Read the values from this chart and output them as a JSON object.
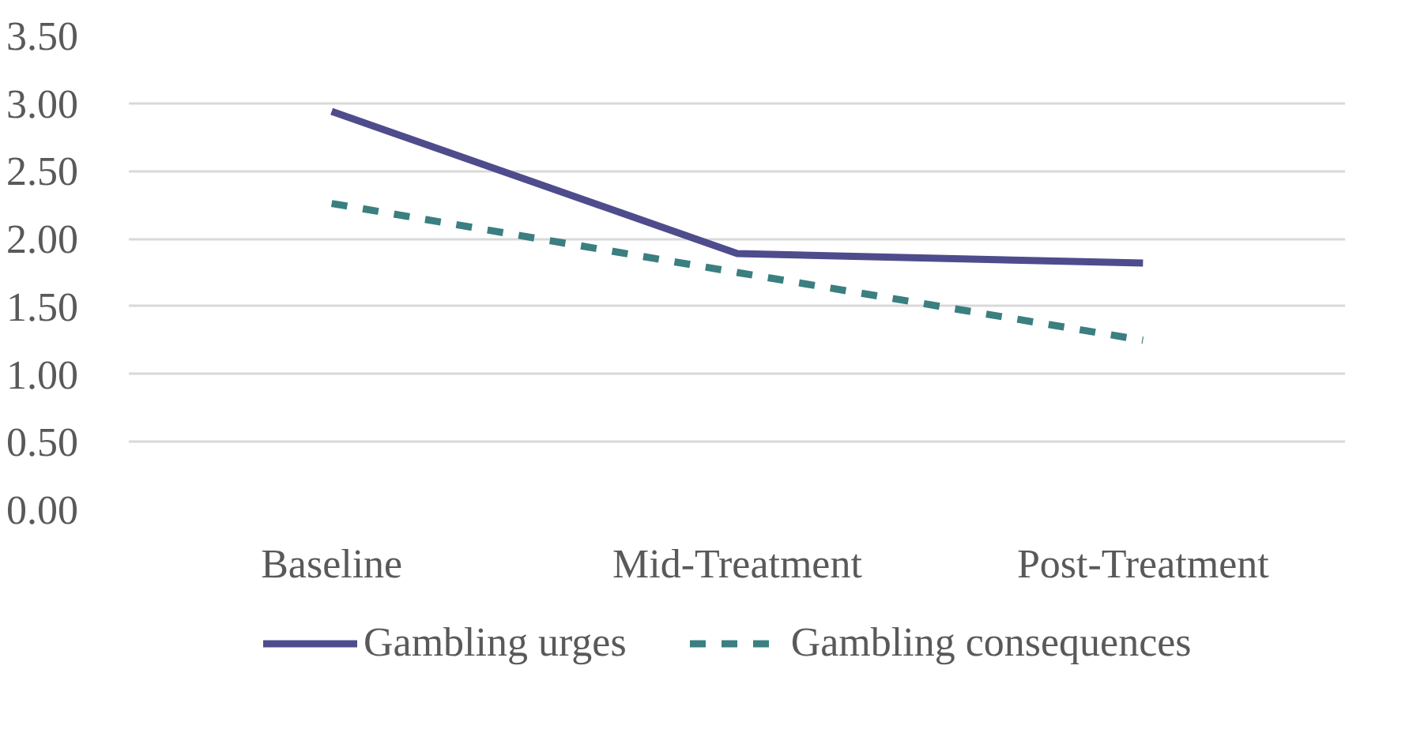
{
  "chart_data": {
    "type": "line",
    "categories": [
      "Baseline",
      "Mid-Treatment",
      "Post-Treatment"
    ],
    "series": [
      {
        "name": "Gambling urges",
        "color": "#4e4c8c",
        "line_style": "solid",
        "values": [
          2.94,
          1.89,
          1.82
        ]
      },
      {
        "name": "Gambling consequences",
        "color": "#3b7f80",
        "line_style": "dashed",
        "values": [
          2.26,
          1.75,
          1.25
        ]
      }
    ],
    "ylim": [
      0,
      3.5
    ],
    "yticks": [
      {
        "value": 0,
        "label": "0.00"
      },
      {
        "value": 0.5,
        "label": "0.50"
      },
      {
        "value": 1,
        "label": "1.00"
      },
      {
        "value": 1.5,
        "label": "1.50"
      },
      {
        "value": 2,
        "label": "2.00"
      },
      {
        "value": 2.5,
        "label": "2.50"
      },
      {
        "value": 3,
        "label": "3.00"
      },
      {
        "value": 3.5,
        "label": "3.50"
      }
    ],
    "grid": "y",
    "legend": "bottom"
  }
}
